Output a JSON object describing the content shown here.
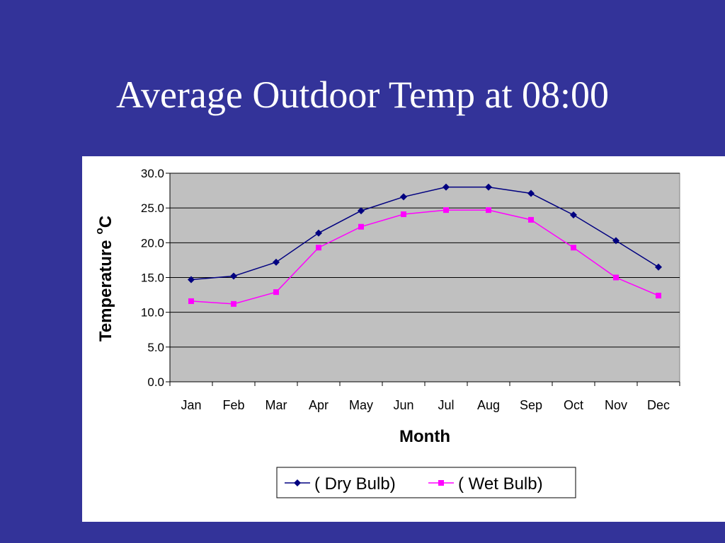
{
  "slide": {
    "title": "Average Outdoor Temp at 08:00"
  },
  "chart_data": {
    "type": "line",
    "categories": [
      "Jan",
      "Feb",
      "Mar",
      "Apr",
      "May",
      "Jun",
      "Jul",
      "Aug",
      "Sep",
      "Oct",
      "Nov",
      "Dec"
    ],
    "series": [
      {
        "name": "( Dry Bulb)",
        "values": [
          14.7,
          15.2,
          17.2,
          21.4,
          24.6,
          26.6,
          28.0,
          28.0,
          27.1,
          24.0,
          20.3,
          16.5
        ],
        "color": "#000080",
        "marker": "diamond"
      },
      {
        "name": "( Wet Bulb)",
        "values": [
          11.6,
          11.2,
          12.9,
          19.3,
          22.3,
          24.1,
          24.7,
          24.7,
          23.3,
          19.3,
          15.0,
          12.4
        ],
        "color": "#ff00ff",
        "marker": "square"
      }
    ],
    "y_ticks": [
      "0.0",
      "5.0",
      "10.0",
      "15.0",
      "20.0",
      "25.0",
      "30.0"
    ],
    "ylim": [
      0,
      30
    ],
    "xlabel": "Month",
    "ylabel": "Temperature",
    "ylabel_unit_sup": "o",
    "ylabel_unit": "C",
    "grid": "horizontal",
    "legend_position": "bottom",
    "plot_background": "#c0c0c0"
  }
}
